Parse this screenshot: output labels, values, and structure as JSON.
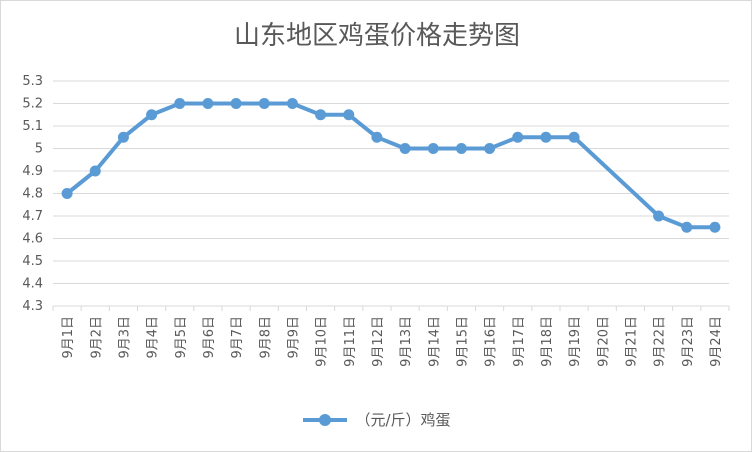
{
  "chart_data": {
    "type": "line",
    "title": "山东地区鸡蛋价格走势图",
    "xlabel": "",
    "ylabel": "",
    "ylim": [
      4.3,
      5.3
    ],
    "yticks": [
      "4.3",
      "4.4",
      "4.5",
      "4.6",
      "4.7",
      "4.8",
      "4.9",
      "5",
      "5.1",
      "5.2",
      "5.3"
    ],
    "grid": true,
    "legend_position": "bottom",
    "categories": [
      "9月1日",
      "9月2日",
      "9月3日",
      "9月4日",
      "9月5日",
      "9月6日",
      "9月7日",
      "9月8日",
      "9月9日",
      "9月10日",
      "9月11日",
      "9月12日",
      "9月13日",
      "9月14日",
      "9月15日",
      "9月16日",
      "9月17日",
      "9月18日",
      "9月19日",
      "9月20日",
      "9月21日",
      "9月22日",
      "9月23日",
      "9月24日"
    ],
    "series": [
      {
        "name": "（元/斤）鸡蛋",
        "color": "#5b9bd5",
        "values": [
          4.8,
          4.9,
          5.05,
          5.15,
          5.2,
          5.2,
          5.2,
          5.2,
          5.2,
          5.15,
          5.15,
          5.05,
          5.0,
          5.0,
          5.0,
          5.0,
          5.05,
          5.05,
          5.05,
          null,
          null,
          4.7,
          4.65,
          4.65
        ]
      }
    ]
  }
}
